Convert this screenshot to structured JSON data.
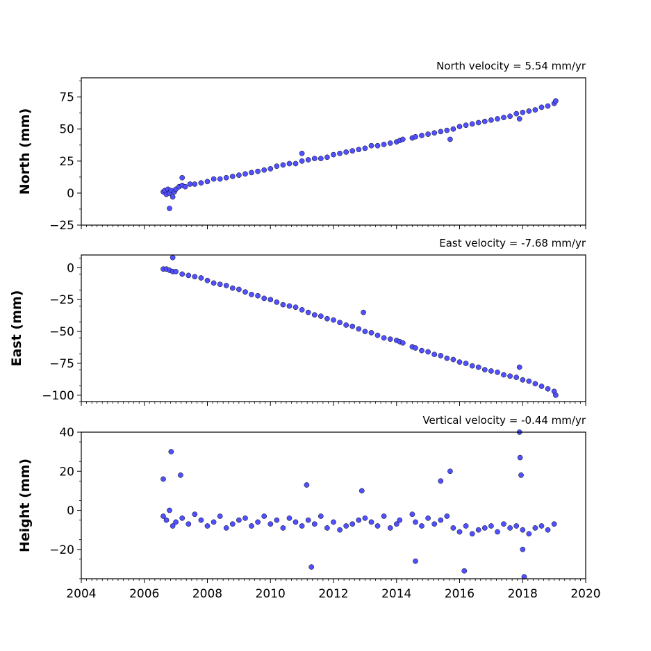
{
  "chart_data": [
    {
      "type": "scatter",
      "title": "North velocity = 5.54 mm/yr",
      "ylabel": "North (mm)",
      "xlim": [
        2004,
        2020
      ],
      "ylim": [
        -25,
        90
      ],
      "yticks": [
        -25,
        0,
        25,
        50,
        75
      ],
      "ytick_labels": [
        "−25",
        "0",
        "25",
        "50",
        "75"
      ],
      "xtick_labels_shown": false,
      "marker_color": "#5050ff",
      "edge_color": "#000000",
      "series": [
        {
          "x": [
            2006.6,
            2006.65,
            2006.7,
            2006.75,
            2006.8,
            2006.85,
            2006.9,
            2006.95,
            2007.0,
            2007.1,
            2007.2,
            2007.3,
            2007.45,
            2007.6,
            2007.8,
            2008.0,
            2008.2,
            2008.4,
            2008.6,
            2008.8,
            2009.0,
            2009.2,
            2009.4,
            2009.6,
            2009.8,
            2010.0,
            2010.2,
            2010.4,
            2010.6,
            2010.8,
            2011.0,
            2011.2,
            2011.4,
            2011.6,
            2011.8,
            2012.0,
            2012.2,
            2012.4,
            2012.6,
            2012.8,
            2013.0,
            2013.2,
            2013.4,
            2013.6,
            2013.8,
            2014.0,
            2014.1,
            2014.2,
            2014.5,
            2014.6,
            2014.8,
            2015.0,
            2015.2,
            2015.4,
            2015.6,
            2015.8,
            2016.0,
            2016.2,
            2016.4,
            2016.6,
            2016.8,
            2017.0,
            2017.2,
            2017.4,
            2017.6,
            2017.8,
            2018.0,
            2018.2,
            2018.4,
            2018.6,
            2018.8,
            2019.0,
            2019.05,
            2006.8,
            2007.2,
            2011.0,
            2015.7,
            2017.9
          ],
          "y": [
            1,
            2,
            -1,
            3,
            0,
            2,
            -3,
            1,
            3,
            5,
            6,
            5,
            7,
            7,
            8,
            9,
            11,
            11,
            12,
            13,
            14,
            15,
            16,
            17,
            18,
            19,
            21,
            22,
            23,
            23,
            25,
            26,
            27,
            27,
            28,
            30,
            31,
            32,
            33,
            34,
            35,
            37,
            37,
            38,
            39,
            40,
            41,
            42,
            43,
            44,
            45,
            46,
            47,
            48,
            49,
            50,
            52,
            53,
            54,
            55,
            56,
            57,
            58,
            59,
            60,
            62,
            63,
            64,
            65,
            67,
            68,
            70,
            72,
            -12,
            12,
            31,
            42,
            58
          ]
        }
      ]
    },
    {
      "type": "scatter",
      "title": "East velocity = -7.68 mm/yr",
      "ylabel": "East (mm)",
      "xlim": [
        2004,
        2020
      ],
      "ylim": [
        -105,
        10
      ],
      "yticks": [
        -100,
        -75,
        -50,
        -25,
        0
      ],
      "ytick_labels": [
        "−100",
        "−75",
        "−50",
        "−25",
        "0"
      ],
      "xtick_labels_shown": false,
      "marker_color": "#5050ff",
      "edge_color": "#000000",
      "series": [
        {
          "x": [
            2006.6,
            2006.7,
            2006.8,
            2006.9,
            2007.0,
            2007.2,
            2007.4,
            2007.6,
            2007.8,
            2008.0,
            2008.2,
            2008.4,
            2008.6,
            2008.8,
            2009.0,
            2009.2,
            2009.4,
            2009.6,
            2009.8,
            2010.0,
            2010.2,
            2010.4,
            2010.6,
            2010.8,
            2011.0,
            2011.2,
            2011.4,
            2011.6,
            2011.8,
            2012.0,
            2012.2,
            2012.4,
            2012.6,
            2012.8,
            2013.0,
            2013.2,
            2013.4,
            2013.6,
            2013.8,
            2014.0,
            2014.1,
            2014.2,
            2014.5,
            2014.6,
            2014.8,
            2015.0,
            2015.2,
            2015.4,
            2015.6,
            2015.8,
            2016.0,
            2016.2,
            2016.4,
            2016.6,
            2016.8,
            2017.0,
            2017.2,
            2017.4,
            2017.6,
            2017.8,
            2018.0,
            2018.2,
            2018.4,
            2018.6,
            2018.8,
            2019.0,
            2019.05,
            2006.9,
            2012.95,
            2017.9
          ],
          "y": [
            -1,
            -1,
            -2,
            -3,
            -3,
            -5,
            -6,
            -7,
            -8,
            -10,
            -12,
            -13,
            -14,
            -16,
            -17,
            -19,
            -21,
            -22,
            -24,
            -25,
            -27,
            -29,
            -30,
            -31,
            -33,
            -35,
            -37,
            -38,
            -40,
            -41,
            -43,
            -45,
            -46,
            -48,
            -50,
            -51,
            -53,
            -55,
            -56,
            -57,
            -58,
            -59,
            -62,
            -63,
            -65,
            -66,
            -68,
            -69,
            -71,
            -72,
            -74,
            -75,
            -77,
            -78,
            -80,
            -81,
            -82,
            -84,
            -85,
            -86,
            -88,
            -89,
            -91,
            -93,
            -95,
            -97,
            -100,
            8,
            -35,
            -78
          ]
        }
      ]
    },
    {
      "type": "scatter",
      "title": "Vertical velocity = -0.44 mm/yr",
      "ylabel": "Height (mm)",
      "xlim": [
        2004,
        2020
      ],
      "xticks": [
        2004,
        2006,
        2008,
        2010,
        2012,
        2014,
        2016,
        2018,
        2020
      ],
      "xtick_labels": [
        "2004",
        "2006",
        "2008",
        "2010",
        "2012",
        "2014",
        "2016",
        "2018",
        "2020"
      ],
      "ylim": [
        -35,
        40
      ],
      "yticks": [
        -20,
        0,
        20,
        40
      ],
      "ytick_labels": [
        "−20",
        "0",
        "20",
        "40"
      ],
      "xtick_labels_shown": true,
      "marker_color": "#5050ff",
      "edge_color": "#000000",
      "series": [
        {
          "x": [
            2006.6,
            2006.7,
            2006.8,
            2006.9,
            2007.0,
            2007.2,
            2007.4,
            2007.6,
            2007.8,
            2008.0,
            2008.2,
            2008.4,
            2008.6,
            2008.8,
            2009.0,
            2009.2,
            2009.4,
            2009.6,
            2009.8,
            2010.0,
            2010.2,
            2010.4,
            2010.6,
            2010.8,
            2011.0,
            2011.2,
            2011.4,
            2011.6,
            2011.8,
            2012.0,
            2012.2,
            2012.4,
            2012.6,
            2012.8,
            2013.0,
            2013.2,
            2013.4,
            2013.6,
            2013.8,
            2014.0,
            2014.1,
            2014.5,
            2014.6,
            2014.8,
            2015.0,
            2015.2,
            2015.4,
            2015.6,
            2015.8,
            2016.0,
            2016.2,
            2016.4,
            2016.6,
            2016.8,
            2017.0,
            2017.2,
            2017.4,
            2017.6,
            2017.8,
            2018.0,
            2018.2,
            2018.4,
            2018.6,
            2018.8,
            2019.0,
            2006.85,
            2006.6,
            2007.15,
            2011.15,
            2011.3,
            2012.9,
            2014.6,
            2015.4,
            2015.7,
            2016.15,
            2017.9,
            2017.92,
            2017.95,
            2018.05,
            2018.0
          ],
          "y": [
            -3,
            -5,
            0,
            -8,
            -6,
            -4,
            -7,
            -2,
            -5,
            -8,
            -6,
            -3,
            -9,
            -7,
            -5,
            -4,
            -8,
            -6,
            -3,
            -7,
            -5,
            -9,
            -4,
            -6,
            -8,
            -5,
            -7,
            -3,
            -9,
            -6,
            -10,
            -8,
            -7,
            -5,
            -4,
            -6,
            -8,
            -3,
            -9,
            -7,
            -5,
            -2,
            -6,
            -8,
            -4,
            -7,
            -5,
            -3,
            -9,
            -11,
            -8,
            -12,
            -10,
            -9,
            -8,
            -11,
            -7,
            -9,
            -8,
            -10,
            -12,
            -9,
            -8,
            -10,
            -7,
            30,
            16,
            18,
            13,
            -29,
            10,
            -26,
            15,
            20,
            -31,
            40,
            27,
            18,
            -34,
            -20
          ]
        }
      ]
    }
  ]
}
